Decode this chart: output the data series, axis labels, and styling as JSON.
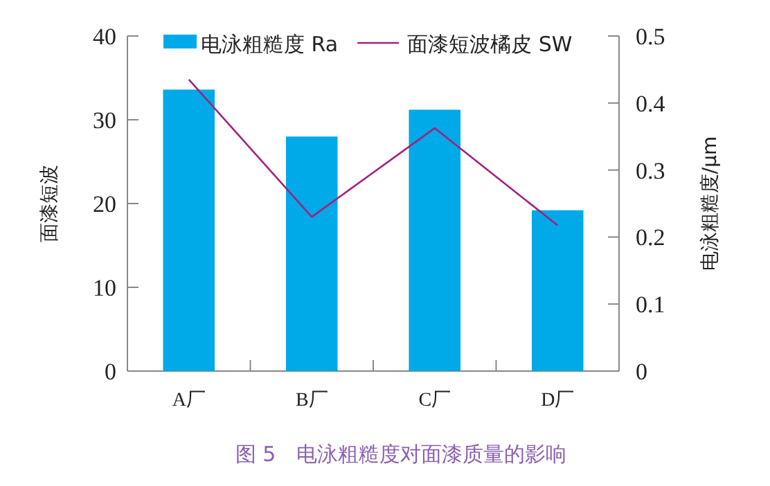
{
  "chart_data": {
    "type": "bar",
    "categories": [
      "A厂",
      "B厂",
      "C厂",
      "D厂"
    ],
    "series": [
      {
        "name": "电泳粗糙度 Ra",
        "axis": "y2",
        "color": "#00a9e8",
        "values": [
          0.42,
          0.35,
          0.39,
          0.24
        ]
      },
      {
        "name": "面漆短波橘皮 SW",
        "type": "line",
        "color": "#a0237f",
        "values": [
          34.8,
          18.4,
          29.0,
          17.4
        ]
      }
    ],
    "ylabel": "面漆短波",
    "y2label": "电泳粗糙度/μm",
    "ylim": [
      0,
      40
    ],
    "yticks": [
      0,
      10,
      20,
      30,
      40
    ],
    "y2lim": [
      0,
      0.5
    ],
    "y2ticks": [
      0,
      0.1,
      0.2,
      0.3,
      0.4,
      0.5
    ],
    "legend": "top",
    "marker": "none",
    "grid": false,
    "annotations": [
      "图 5　电泳粗糙度对面漆质量的影响"
    ]
  }
}
